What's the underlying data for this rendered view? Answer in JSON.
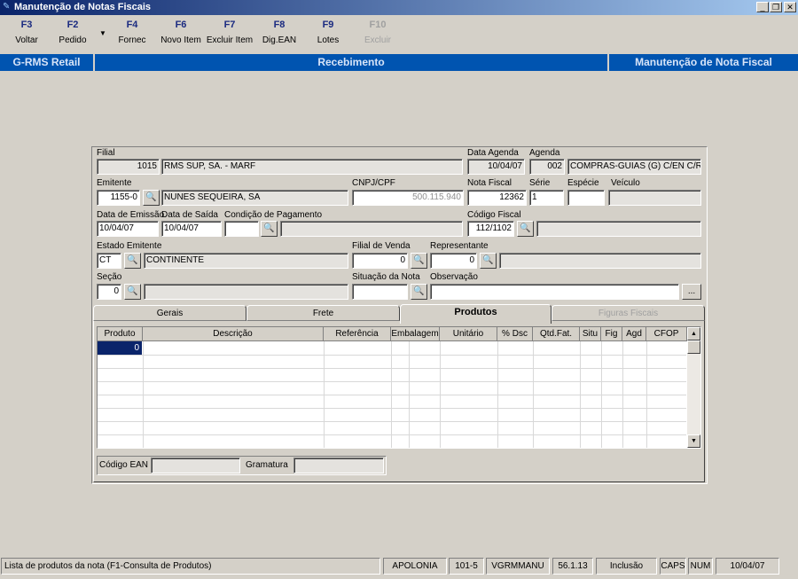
{
  "window": {
    "title": "Manutenção de Notas Fiscais",
    "controls": [
      "_",
      "❐",
      "✕"
    ]
  },
  "toolbar": [
    {
      "key": "F3",
      "label": "Voltar",
      "enabled": true
    },
    {
      "key": "F2",
      "label": "Pedido",
      "enabled": true
    },
    {
      "key": "F4",
      "label": "Fornec",
      "enabled": true
    },
    {
      "key": "F6",
      "label": "Novo Item",
      "enabled": true
    },
    {
      "key": "F7",
      "label": "Excluir Item",
      "enabled": true
    },
    {
      "key": "F8",
      "label": "Dig.EAN",
      "enabled": true
    },
    {
      "key": "F9",
      "label": "Lotes",
      "enabled": true
    },
    {
      "key": "F10",
      "label": "Excluir",
      "enabled": false
    }
  ],
  "banner": {
    "app": "G-RMS Retail",
    "module": "Recebimento",
    "screen": "Manutenção de Nota Fiscal"
  },
  "form": {
    "filial": {
      "label": "Filial",
      "code": "1015",
      "name": "RMS SUP, SA. - MARF"
    },
    "data_agenda": {
      "label": "Data Agenda",
      "value": "10/04/07"
    },
    "agenda": {
      "label": "Agenda",
      "code": "002",
      "name": "COMPRAS-GUIAS (G) C/EN C/RF"
    },
    "emitente": {
      "label": "Emitente",
      "code": "1155-0",
      "name": "NUNES SEQUEIRA, SA"
    },
    "cnpj": {
      "label": "CNPJ/CPF",
      "value": "500.115.940"
    },
    "nota_fiscal": {
      "label": "Nota Fiscal",
      "value": "12362"
    },
    "serie": {
      "label": "Série",
      "value": "1"
    },
    "especie": {
      "label": "Espécie",
      "value": ""
    },
    "veiculo": {
      "label": "Veículo",
      "value": ""
    },
    "data_emissao": {
      "label": "Data de Emissão",
      "value": "10/04/07"
    },
    "data_saida": {
      "label": "Data de Saída",
      "value": "10/04/07"
    },
    "cond_pagamento": {
      "label": "Condição de Pagamento",
      "value": "",
      "desc": ""
    },
    "codigo_fiscal": {
      "label": "Código Fiscal",
      "value": "112/1102",
      "desc": ""
    },
    "estado_emitente": {
      "label": "Estado Emitente",
      "code": "CT",
      "name": "CONTINENTE"
    },
    "filial_venda": {
      "label": "Filial de Venda",
      "value": "0"
    },
    "representante": {
      "label": "Representante",
      "value": "0",
      "desc": ""
    },
    "secao": {
      "label": "Seção",
      "value": "0",
      "desc": ""
    },
    "situacao": {
      "label": "Situação da Nota",
      "value": ""
    },
    "observacao": {
      "label": "Observação",
      "value": "",
      "more": "..."
    }
  },
  "tabs": [
    {
      "label": "Gerais",
      "active": false
    },
    {
      "label": "Frete",
      "active": false
    },
    {
      "label": "Produtos",
      "active": true
    },
    {
      "label": "Figuras Fiscais",
      "active": false,
      "enabled": false
    }
  ],
  "grid": {
    "columns": [
      "Produto",
      "Descrição",
      "Referência",
      "Embalagem",
      "Unitário",
      "% Dsc",
      "Qtd.Fat.",
      "Situ",
      "Fig",
      "Agd",
      "CFOP"
    ],
    "rows": [
      [
        "0",
        "",
        "",
        "",
        "",
        "",
        "",
        "",
        "",
        "",
        ""
      ]
    ]
  },
  "ean": {
    "label": "Código EAN",
    "value": "",
    "gramatura_label": "Gramatura",
    "gramatura": ""
  },
  "status": {
    "message": "Lista de produtos da nota  (F1-Consulta de Produtos)",
    "user": "APOLONIA",
    "filial": "101-5",
    "program": "VGRMMANU",
    "version": "56.1.13",
    "mode": "Inclusão",
    "caps": "CAPS",
    "num": "NUM",
    "date": "10/04/07"
  },
  "colors": {
    "banner": "#0054b0",
    "title": "#0a246a",
    "selected": "#0a246a"
  }
}
